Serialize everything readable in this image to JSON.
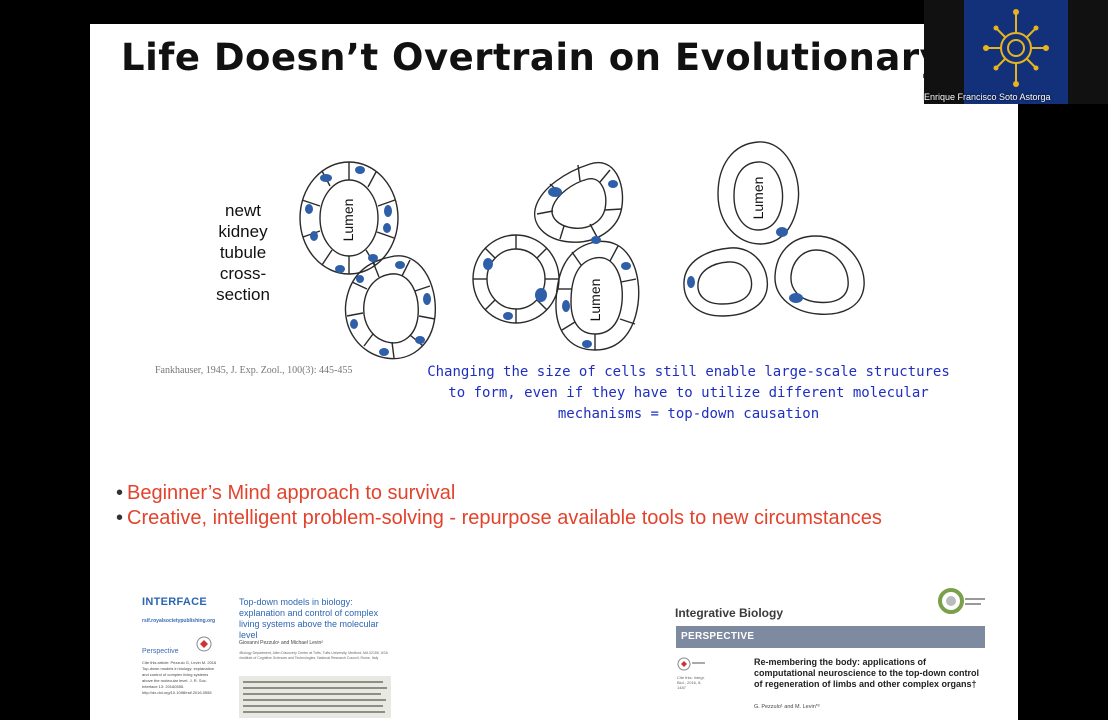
{
  "slide": {
    "title": "Life Doesn’t Overtrain on Evolutionary Pri",
    "newt_label": [
      "newt",
      "kidney",
      "tubule",
      "cross-",
      "section"
    ],
    "lumen_label": "Lumen",
    "citation": "Fankhauser, 1945, J. Exp. Zool., 100(3): 445-455",
    "caption": "Changing the size of cells still enable large-scale structures to form, even if they have to utilize different molecular mechanisms = top-down causation",
    "bullets": [
      "Beginner’s Mind approach to survival",
      "Creative, intelligent problem-solving - repurpose available tools to new circumstances"
    ],
    "colors": {
      "title": "#111111",
      "bullets": "#e2432c",
      "caption": "#1f2fbf",
      "nucleus": "#2f5fa8"
    }
  },
  "paper1": {
    "journal": "INTERFACE",
    "url": "rsif.royalsocietypublishing.org",
    "type": "Perspective",
    "cite": "Cite this article: Pezzulo G, Levin M. 2016 Top-down models in biology: explanation and control of complex living systems above the molecular level. J. R. Soc. Interface 13: 20160555. http://dx.doi.org/10.1098/rsif.2016.0555",
    "title": "Top-down models in biology: explanation and control of complex living systems above the molecular level",
    "authors": "Giovanni Pezzulo¹ and Michael Levin²",
    "affiliations": "¹Biology Department, Allen Discovery Center at Tufts, Tufts University, Medford, MA 02155, USA ²Institute of Cognitive Sciences and Technologies, National Research Council, Rome, Italy"
  },
  "paper2": {
    "journal": "Integrative Biology",
    "banner": "PERSPECTIVE",
    "meta": "Cite this: Integr. Biol., 2016, 8, 1487",
    "title": "Re-membering the body: applications of computational neuroscience to the top-down control of regeneration of limbs and other complex organs†",
    "authors": "G. Pezzulo¹ and M. Levin*²"
  },
  "webcam": {
    "participant_name": "Enrique Francisco Soto Astorga"
  }
}
